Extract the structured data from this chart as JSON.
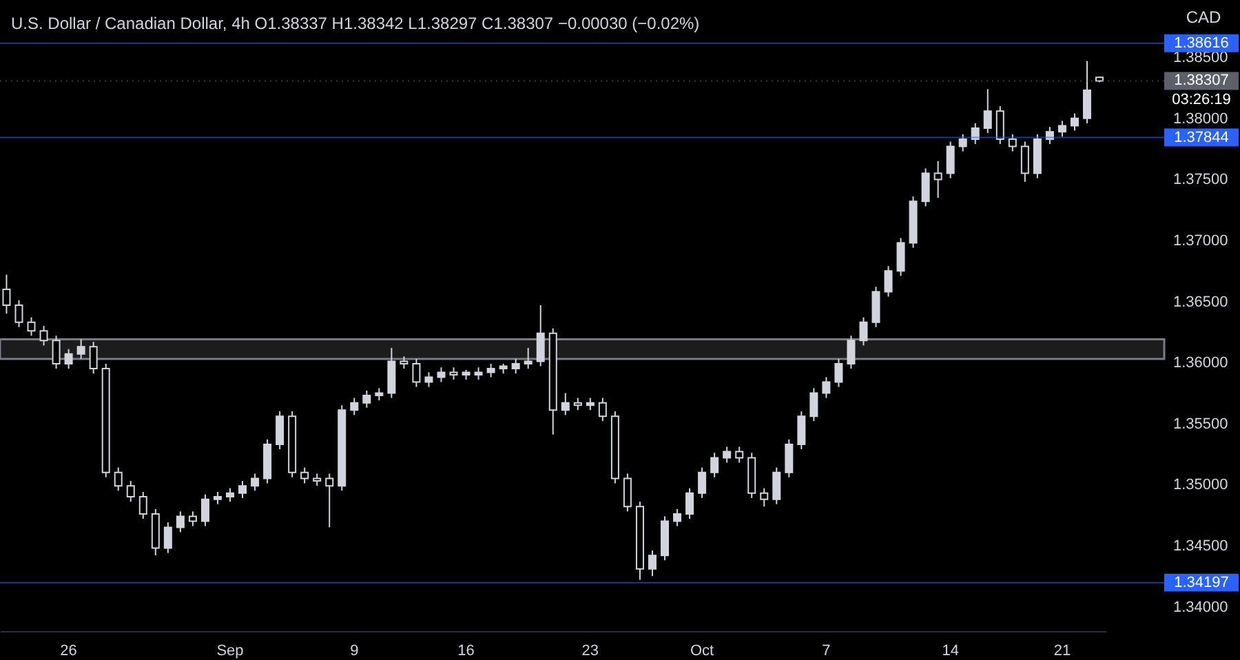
{
  "chart_data": {
    "type": "candlestick",
    "title": "U.S. Dollar / Canadian Dollar, 4h  O1.38337  H1.38342  L1.38297  C1.38307  −0.00030 (−0.02%)",
    "ylabel": "CAD",
    "color": "#d1d4dc",
    "categories": [
      null,
      null,
      null,
      null,
      null,
      "26",
      null,
      null,
      null,
      null,
      null,
      null,
      null,
      null,
      null,
      null,
      null,
      null,
      "Sep",
      null,
      null,
      null,
      null,
      null,
      null,
      null,
      null,
      null,
      "9",
      null,
      null,
      null,
      null,
      null,
      null,
      null,
      null,
      "16",
      null,
      null,
      null,
      null,
      null,
      null,
      null,
      null,
      null,
      "23",
      null,
      null,
      null,
      null,
      null,
      null,
      null,
      null,
      "Oct",
      null,
      null,
      null,
      null,
      null,
      null,
      null,
      null,
      null,
      "7",
      null,
      null,
      null,
      null,
      null,
      null,
      null,
      null,
      null,
      "14",
      null,
      null,
      null,
      null,
      null,
      null,
      null,
      null,
      "21",
      null,
      null,
      null
    ],
    "ohlc": [
      [
        1.366,
        1.3672,
        1.364,
        1.3647
      ],
      [
        1.3647,
        1.3651,
        1.3629,
        1.3633
      ],
      [
        1.3633,
        1.3637,
        1.3622,
        1.3626
      ],
      [
        1.3626,
        1.363,
        1.3614,
        1.3618
      ],
      [
        1.3618,
        1.3622,
        1.3595,
        1.3599
      ],
      [
        1.3599,
        1.3611,
        1.3595,
        1.3607
      ],
      [
        1.3607,
        1.3619,
        1.3603,
        1.3613
      ],
      [
        1.3613,
        1.3617,
        1.3591,
        1.3595
      ],
      [
        1.3595,
        1.3599,
        1.3506,
        1.351
      ],
      [
        1.351,
        1.3514,
        1.3495,
        1.3499
      ],
      [
        1.3499,
        1.3503,
        1.3486,
        1.349
      ],
      [
        1.349,
        1.3494,
        1.3472,
        1.3476
      ],
      [
        1.3476,
        1.348,
        1.3442,
        1.3448
      ],
      [
        1.3448,
        1.3469,
        1.3444,
        1.3465
      ],
      [
        1.3465,
        1.3478,
        1.3461,
        1.3474
      ],
      [
        1.3474,
        1.3478,
        1.3466,
        1.347
      ],
      [
        1.347,
        1.3492,
        1.3466,
        1.3488
      ],
      [
        1.3488,
        1.3494,
        1.3484,
        1.349
      ],
      [
        1.349,
        1.3497,
        1.3486,
        1.3493
      ],
      [
        1.3493,
        1.3503,
        1.3489,
        1.3499
      ],
      [
        1.3499,
        1.3509,
        1.3495,
        1.3505
      ],
      [
        1.3505,
        1.3537,
        1.3501,
        1.3533
      ],
      [
        1.3533,
        1.356,
        1.3529,
        1.3556
      ],
      [
        1.3556,
        1.356,
        1.3506,
        1.351
      ],
      [
        1.351,
        1.3514,
        1.3501,
        1.3505
      ],
      [
        1.3505,
        1.3509,
        1.3499,
        1.3503
      ],
      [
        1.3505,
        1.3509,
        1.3465,
        1.3499
      ],
      [
        1.3499,
        1.3565,
        1.3495,
        1.3561
      ],
      [
        1.3561,
        1.3571,
        1.3557,
        1.3567
      ],
      [
        1.3567,
        1.3577,
        1.3563,
        1.3573
      ],
      [
        1.3573,
        1.3579,
        1.3569,
        1.3575
      ],
      [
        1.3575,
        1.3612,
        1.3571,
        1.3601
      ],
      [
        1.3601,
        1.3605,
        1.3595,
        1.3599
      ],
      [
        1.3599,
        1.3603,
        1.358,
        1.3584
      ],
      [
        1.3584,
        1.3592,
        1.358,
        1.3588
      ],
      [
        1.3588,
        1.3596,
        1.3584,
        1.3592
      ],
      [
        1.3592,
        1.3596,
        1.3586,
        1.359
      ],
      [
        1.359,
        1.3594,
        1.3586,
        1.3592
      ],
      [
        1.359,
        1.3596,
        1.3586,
        1.3592
      ],
      [
        1.3592,
        1.3599,
        1.3588,
        1.3595
      ],
      [
        1.3595,
        1.3599,
        1.3591,
        1.3597
      ],
      [
        1.3595,
        1.3603,
        1.3591,
        1.3599
      ],
      [
        1.3599,
        1.3612,
        1.3595,
        1.3601
      ],
      [
        1.3601,
        1.3647,
        1.3597,
        1.3624
      ],
      [
        1.3624,
        1.3628,
        1.3541,
        1.3561
      ],
      [
        1.3561,
        1.3575,
        1.3557,
        1.3567
      ],
      [
        1.3567,
        1.3571,
        1.3561,
        1.3565
      ],
      [
        1.3565,
        1.3571,
        1.3561,
        1.3567
      ],
      [
        1.3567,
        1.3571,
        1.3552,
        1.3556
      ],
      [
        1.3556,
        1.356,
        1.3501,
        1.3505
      ],
      [
        1.3505,
        1.3509,
        1.3478,
        1.3482
      ],
      [
        1.3482,
        1.3486,
        1.3422,
        1.3431
      ],
      [
        1.3431,
        1.3446,
        1.3425,
        1.3442
      ],
      [
        1.3442,
        1.3474,
        1.3438,
        1.347
      ],
      [
        1.347,
        1.348,
        1.3466,
        1.3476
      ],
      [
        1.3476,
        1.3497,
        1.3472,
        1.3493
      ],
      [
        1.3493,
        1.3514,
        1.3489,
        1.351
      ],
      [
        1.351,
        1.3526,
        1.3506,
        1.3522
      ],
      [
        1.3522,
        1.3531,
        1.3518,
        1.3527
      ],
      [
        1.3527,
        1.3531,
        1.3518,
        1.3522
      ],
      [
        1.3522,
        1.3526,
        1.3489,
        1.3493
      ],
      [
        1.3493,
        1.3497,
        1.3482,
        1.3488
      ],
      [
        1.3488,
        1.3514,
        1.3484,
        1.351
      ],
      [
        1.351,
        1.3537,
        1.3506,
        1.3533
      ],
      [
        1.3533,
        1.356,
        1.3529,
        1.3556
      ],
      [
        1.3556,
        1.3579,
        1.3552,
        1.3575
      ],
      [
        1.3575,
        1.3588,
        1.3571,
        1.3584
      ],
      [
        1.3584,
        1.3603,
        1.358,
        1.3599
      ],
      [
        1.3599,
        1.3622,
        1.3595,
        1.3618
      ],
      [
        1.3618,
        1.3637,
        1.3614,
        1.3633
      ],
      [
        1.3633,
        1.3662,
        1.3629,
        1.3658
      ],
      [
        1.3658,
        1.3679,
        1.3654,
        1.3675
      ],
      [
        1.3675,
        1.3702,
        1.3671,
        1.3698
      ],
      [
        1.3698,
        1.3736,
        1.3694,
        1.3732
      ],
      [
        1.3732,
        1.3759,
        1.3728,
        1.3755
      ],
      [
        1.3755,
        1.3765,
        1.3735,
        1.375
      ],
      [
        1.3755,
        1.3781,
        1.3751,
        1.3777
      ],
      [
        1.3777,
        1.3787,
        1.3773,
        1.3783
      ],
      [
        1.3783,
        1.3796,
        1.3779,
        1.3792
      ],
      [
        1.3792,
        1.3824,
        1.3788,
        1.3806
      ],
      [
        1.3806,
        1.381,
        1.3779,
        1.3783
      ],
      [
        1.3783,
        1.3787,
        1.3773,
        1.3777
      ],
      [
        1.3777,
        1.3781,
        1.3748,
        1.3755
      ],
      [
        1.3755,
        1.3787,
        1.3751,
        1.3783
      ],
      [
        1.3783,
        1.3793,
        1.3779,
        1.3789
      ],
      [
        1.3789,
        1.3798,
        1.3785,
        1.3794
      ],
      [
        1.3794,
        1.3804,
        1.379,
        1.38
      ],
      [
        1.38,
        1.3847,
        1.3796,
        1.3823
      ],
      [
        1.38337,
        1.38342,
        1.38297,
        1.38307
      ]
    ],
    "ylim": [
      1.338,
      1.3897
    ],
    "yticks": [
      {
        "value": 1.34,
        "label": "1.34000"
      },
      {
        "value": 1.345,
        "label": "1.34500"
      },
      {
        "value": 1.35,
        "label": "1.35000"
      },
      {
        "value": 1.355,
        "label": "1.35500"
      },
      {
        "value": 1.36,
        "label": "1.36000"
      },
      {
        "value": 1.365,
        "label": "1.36500"
      },
      {
        "value": 1.37,
        "label": "1.37000"
      },
      {
        "value": 1.375,
        "label": "1.37500"
      },
      {
        "value": 1.38,
        "label": "1.38000"
      },
      {
        "value": 1.385,
        "label": "1.38500"
      }
    ],
    "ref_lines": [
      {
        "axis": "y",
        "value": 1.38616,
        "label": "1.38616",
        "color": "#2962ff"
      },
      {
        "axis": "y",
        "value": 1.37844,
        "label": "1.37844",
        "color": "#2962ff"
      },
      {
        "axis": "y",
        "value": 1.34197,
        "label": "1.34197",
        "color": "#2962ff"
      },
      {
        "axis": "y",
        "value": 1.38307,
        "label": "1.38307",
        "color": "#5d606b",
        "line_style": "dotted"
      }
    ],
    "bands": [
      {
        "axis": "y",
        "from": 1.3603,
        "to": 1.3619,
        "color": "#1c1c1c"
      }
    ],
    "annotations": [
      "03:26:19"
    ]
  }
}
